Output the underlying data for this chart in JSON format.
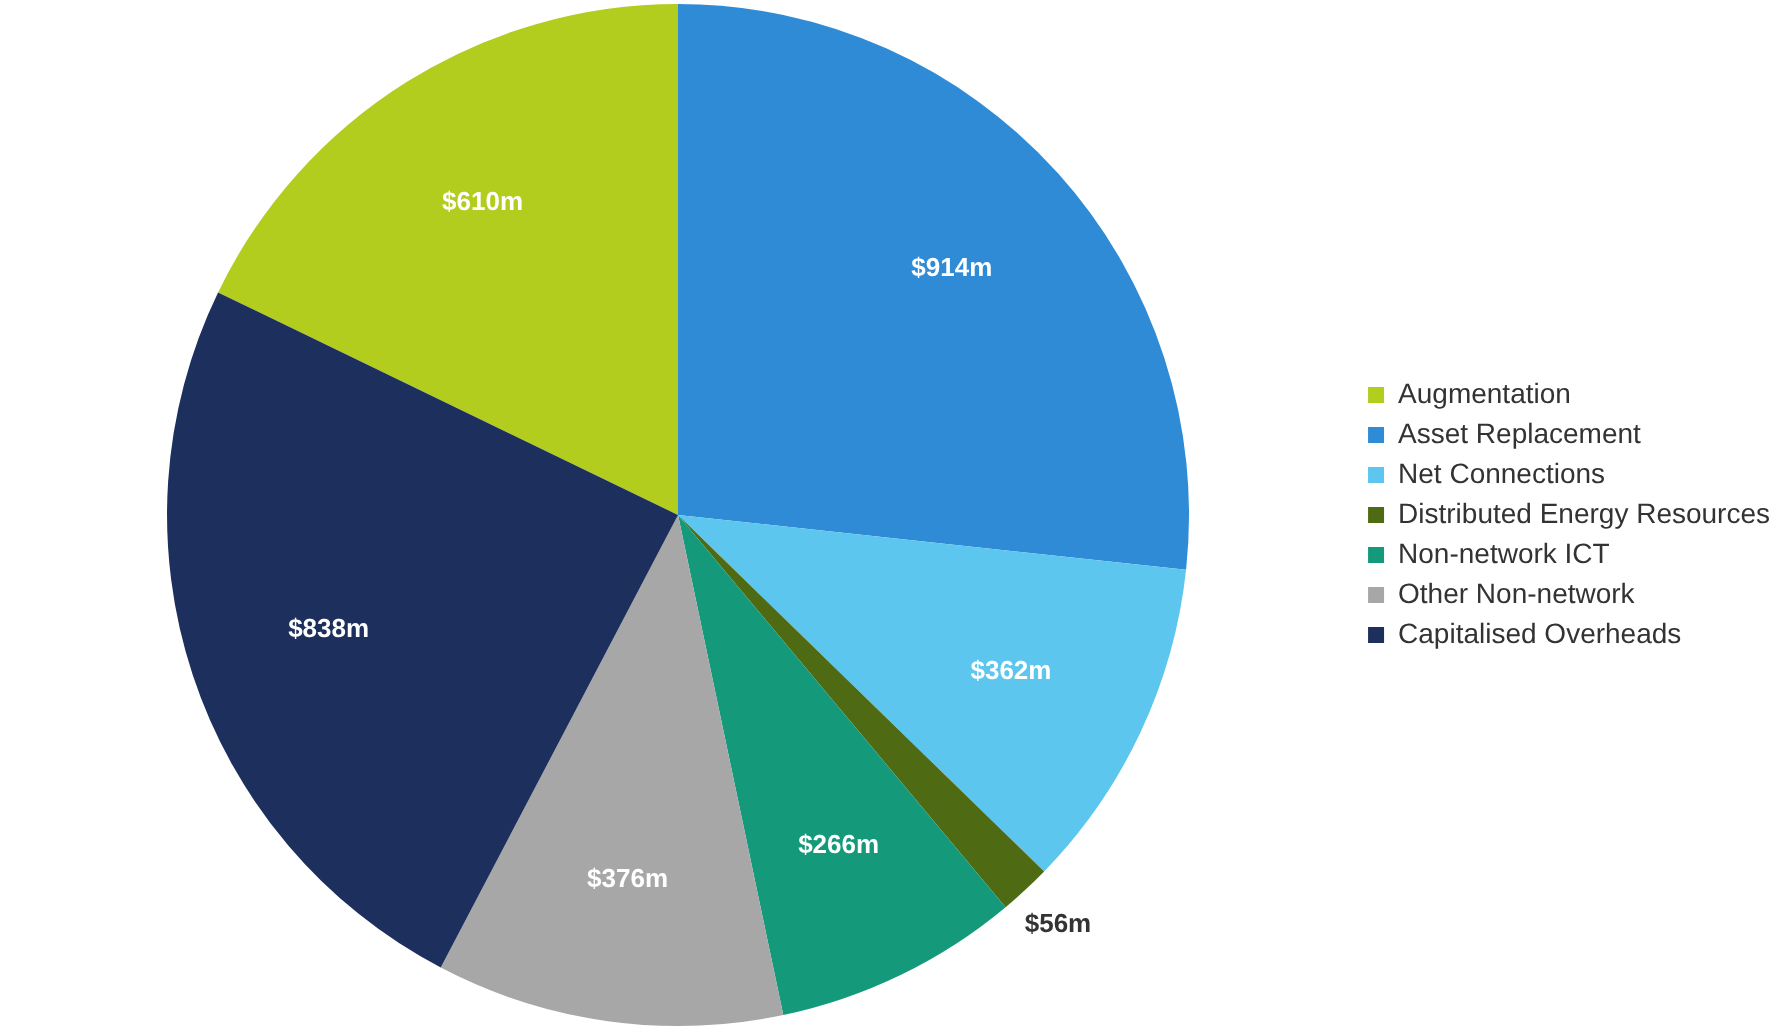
{
  "chart_data": {
    "type": "pie",
    "categories": [
      "Augmentation",
      "Asset Replacement",
      "Net Connections",
      "Distributed Energy Resources",
      "Non-network ICT",
      "Other Non-network",
      "Capitalised Overheads"
    ],
    "values": [
      610,
      914,
      362,
      56,
      266,
      376,
      838
    ],
    "colors": [
      "#b3cd1f",
      "#2f8bd5",
      "#5cc6ee",
      "#4e6a13",
      "#149a7b",
      "#a7a7a7",
      "#1c2f5d"
    ],
    "value_labels": [
      "$610m",
      "$914m",
      "$362m",
      "$56m",
      "$266m",
      "$376m",
      "$838m"
    ],
    "legend": "right"
  }
}
